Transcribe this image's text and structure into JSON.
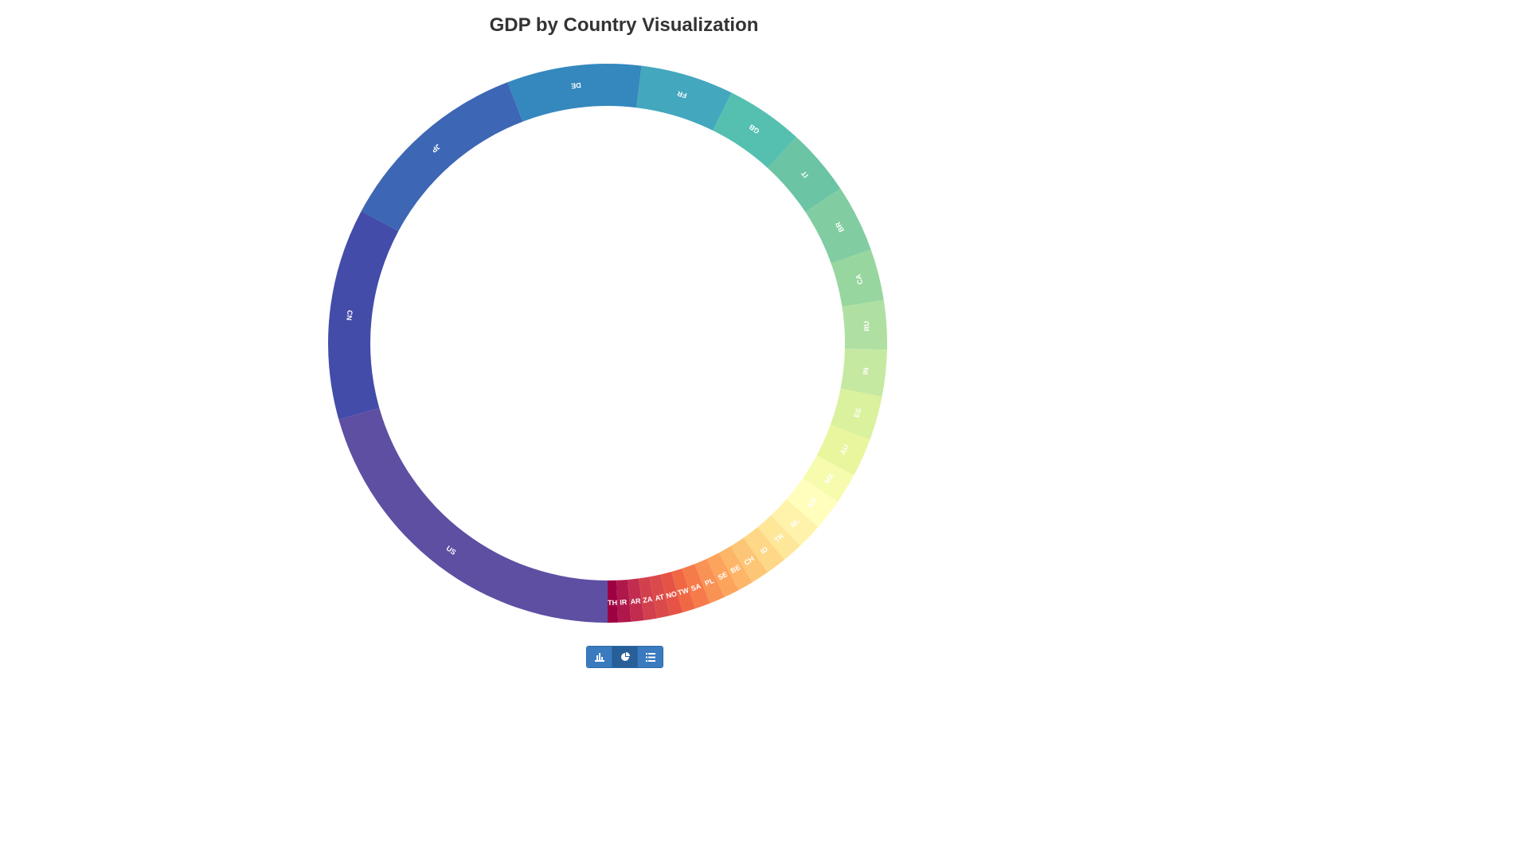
{
  "title": "GDP by Country Visualization",
  "chart_data": {
    "type": "pie",
    "style": "donut",
    "start_angle_deg": 180,
    "direction": "clockwise",
    "categories": [
      "US",
      "CN",
      "JP",
      "DE",
      "FR",
      "GB",
      "IT",
      "BR",
      "CA",
      "RU",
      "IN",
      "ES",
      "AU",
      "MX",
      "KR",
      "NL",
      "TR",
      "ID",
      "CH",
      "BE",
      "SE",
      "PL",
      "SA",
      "TW",
      "NO",
      "AT",
      "ZA",
      "AR",
      "IR",
      "TH"
    ],
    "values": [
      69,
      41,
      38,
      26,
      18,
      15,
      13,
      13,
      10,
      9.5,
      9,
      8.5,
      7.5,
      6,
      6,
      5,
      4,
      4,
      3.5,
      3,
      3,
      3,
      3,
      2.5,
      2.5,
      2.5,
      2.5,
      2.5,
      2.5,
      2
    ],
    "colors": [
      "#5e4fa2",
      "#444ca9",
      "#3d67b4",
      "#3488bd",
      "#43a7be",
      "#55c0b0",
      "#6bc4a4",
      "#81cda1",
      "#98d69f",
      "#b0dfa2",
      "#c5e9a1",
      "#daf19d",
      "#e9f69d",
      "#f6fbae",
      "#fffebd",
      "#fff3ab",
      "#fee799",
      "#fed787",
      "#fdc676",
      "#fdb567",
      "#fca35c",
      "#f99255",
      "#f67b4b",
      "#f06744",
      "#e65346",
      "#db4a4b",
      "#d3404d",
      "#c22d4f",
      "#b0184c",
      "#9e0142"
    ]
  },
  "toolbar": {
    "buttons": [
      {
        "name": "bar-chart-icon",
        "active": false
      },
      {
        "name": "pie-chart-icon",
        "active": true
      },
      {
        "name": "list-icon",
        "active": false
      }
    ]
  }
}
